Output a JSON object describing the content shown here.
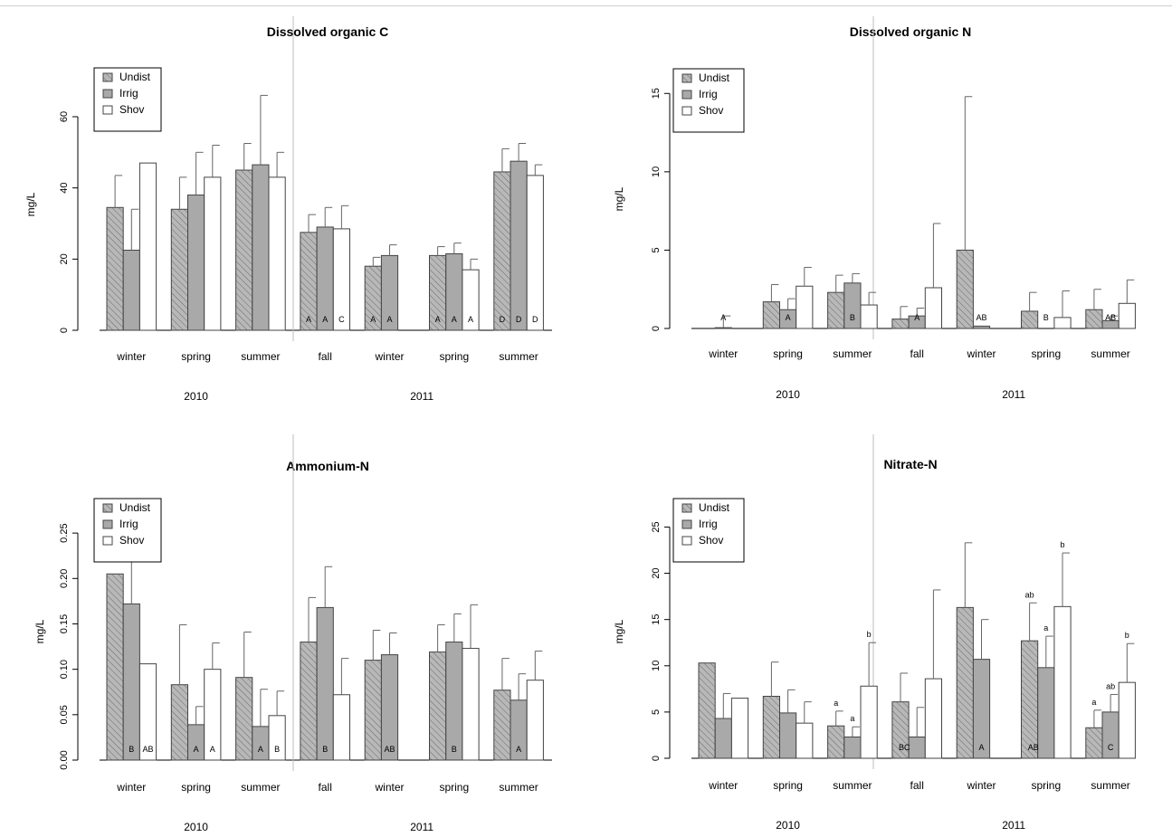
{
  "legend_keys": [
    "Undist",
    "Irrig",
    "Shov"
  ],
  "colors": {
    "undist": "#b8b8b8",
    "irrig": "#a9a9a9",
    "shov": "#ffffff",
    "hatch": "#6a6a6a"
  },
  "chart_data": [
    {
      "type": "bar",
      "title": "Dissolved organic C",
      "ylabel": "mg/L",
      "ylim": [
        0,
        75
      ],
      "yticks": [
        0,
        20,
        40,
        60
      ],
      "ytick_labels": [
        "0",
        "20",
        "40",
        "60"
      ],
      "categories": [
        "winter",
        "spring",
        "summer",
        "fall",
        "winter",
        "spring",
        "summer"
      ],
      "years": [
        {
          "label": "2010",
          "groups": [
            0,
            2
          ]
        },
        {
          "label": "2011",
          "groups": [
            3,
            6
          ]
        }
      ],
      "year_divider_after_group": 2,
      "legend_position": "top-left",
      "series": [
        {
          "name": "Undist",
          "values": [
            34.5,
            34,
            45,
            27.5,
            18,
            21,
            44.5
          ],
          "errors": [
            43.5,
            43,
            52.5,
            32.5,
            20.5,
            23.5,
            51
          ],
          "letters": [
            "",
            "",
            "",
            "A",
            "A",
            "A",
            "D"
          ]
        },
        {
          "name": "Irrig",
          "values": [
            22.5,
            38,
            46.5,
            29,
            21,
            21.5,
            47.5
          ],
          "errors": [
            34,
            50,
            66,
            34.5,
            24,
            24.5,
            52.5
          ],
          "letters": [
            "",
            "",
            "",
            "A",
            "A",
            "A",
            "D"
          ]
        },
        {
          "name": "Shov",
          "values": [
            47,
            43,
            43,
            28.5,
            null,
            17,
            43.5
          ],
          "errors": [
            null,
            52,
            50,
            35,
            null,
            20,
            46.5
          ],
          "letters": [
            "",
            "",
            "",
            "C",
            "",
            "A",
            "D"
          ]
        }
      ]
    },
    {
      "type": "bar",
      "title": "Dissolved organic N",
      "ylabel": "mg/L",
      "ylim": [
        0,
        17.5
      ],
      "yticks": [
        0,
        5,
        10,
        15
      ],
      "ytick_labels": [
        "0",
        "5",
        "10",
        "15"
      ],
      "categories": [
        "winter",
        "spring",
        "summer",
        "fall",
        "winter",
        "spring",
        "summer"
      ],
      "years": [
        {
          "label": "2010",
          "groups": [
            0,
            2
          ]
        },
        {
          "label": "2011",
          "groups": [
            3,
            6
          ]
        }
      ],
      "year_divider_after_group": 2,
      "legend_position": "top-left",
      "series": [
        {
          "name": "Undist",
          "values": [
            0,
            1.7,
            2.3,
            0.6,
            5,
            1.1,
            1.2
          ],
          "errors": [
            null,
            2.8,
            3.4,
            1.4,
            14.8,
            2.3,
            2.5
          ],
          "letters": [
            "",
            "",
            "",
            "",
            "",
            "",
            ""
          ]
        },
        {
          "name": "Irrig",
          "values": [
            0.05,
            1.2,
            2.9,
            0.8,
            0.15,
            0,
            0.5
          ],
          "errors": [
            0.8,
            1.9,
            3.5,
            1.3,
            null,
            null,
            0.8
          ],
          "letters": [
            "A",
            "A",
            "B",
            "A",
            "AB",
            "B",
            "AB"
          ]
        },
        {
          "name": "Shov",
          "values": [
            null,
            2.7,
            1.5,
            2.6,
            null,
            0.7,
            1.6
          ],
          "errors": [
            null,
            3.9,
            2.3,
            6.7,
            null,
            2.4,
            3.1
          ],
          "letters": [
            "",
            "",
            "",
            "",
            "",
            "",
            ""
          ]
        }
      ]
    },
    {
      "type": "bar",
      "title": "Ammonium-N",
      "ylabel": "mg/L",
      "ylim": [
        0,
        0.285
      ],
      "yticks": [
        0,
        0.05,
        0.1,
        0.15,
        0.2,
        0.25
      ],
      "ytick_labels": [
        "0.00",
        "0.05",
        "0.10",
        "0.15",
        "0.20",
        "0.25"
      ],
      "categories": [
        "winter",
        "spring",
        "summer",
        "fall",
        "winter",
        "spring",
        "summer"
      ],
      "years": [
        {
          "label": "2010",
          "groups": [
            0,
            2
          ]
        },
        {
          "label": "2011",
          "groups": [
            3,
            6
          ]
        }
      ],
      "year_divider_after_group": 2,
      "legend_position": "top-left",
      "series": [
        {
          "name": "Undist",
          "values": [
            0.205,
            0.083,
            0.091,
            0.13,
            0.11,
            0.119,
            0.077
          ],
          "errors": [
            null,
            0.149,
            0.141,
            0.179,
            0.143,
            0.149,
            0.112
          ],
          "letters": [
            "",
            "",
            "",
            "",
            "",
            "",
            ""
          ]
        },
        {
          "name": "Irrig",
          "values": [
            0.172,
            0.039,
            0.037,
            0.168,
            0.116,
            0.13,
            0.066
          ],
          "errors": [
            0.23,
            0.059,
            0.078,
            0.213,
            0.14,
            0.161,
            0.095
          ],
          "letters": [
            "B",
            "A",
            "A",
            "B",
            "AB",
            "B",
            "A"
          ]
        },
        {
          "name": "Shov",
          "values": [
            0.106,
            0.1,
            0.049,
            0.072,
            null,
            0.123,
            0.088
          ],
          "errors": [
            null,
            0.129,
            0.076,
            0.112,
            null,
            0.171,
            0.12
          ],
          "letters": [
            "AB",
            "A",
            "B",
            "",
            "",
            "",
            ""
          ]
        }
      ]
    },
    {
      "type": "bar",
      "title": "Nitrate-N",
      "ylabel": "mg/L",
      "ylim": [
        0,
        27
      ],
      "yticks": [
        0,
        5,
        10,
        15,
        20,
        25
      ],
      "ytick_labels": [
        "0",
        "5",
        "10",
        "15",
        "20",
        "25"
      ],
      "categories": [
        "winter",
        "spring",
        "summer",
        "fall",
        "winter",
        "spring",
        "summer"
      ],
      "years": [
        {
          "label": "2010",
          "groups": [
            0,
            2
          ]
        },
        {
          "label": "2011",
          "groups": [
            3,
            6
          ]
        }
      ],
      "year_divider_after_group": 2,
      "legend_position": "top-left",
      "series": [
        {
          "name": "Undist",
          "values": [
            10.3,
            6.7,
            3.5,
            6.1,
            16.3,
            12.7,
            3.3
          ],
          "errors": [
            null,
            10.4,
            5.1,
            9.2,
            23.3,
            16.8,
            5.2
          ],
          "letters": [
            "",
            "",
            "a",
            "",
            "",
            "ab",
            "a"
          ],
          "base_letters": [
            "",
            "",
            "",
            "",
            "",
            "",
            ""
          ]
        },
        {
          "name": "Irrig",
          "values": [
            4.3,
            4.9,
            2.3,
            2.3,
            10.7,
            9.8,
            5
          ],
          "errors": [
            7,
            7.4,
            3.4,
            5.5,
            15,
            13.2,
            6.9
          ],
          "letters": [
            "",
            "",
            "a",
            "",
            "",
            "a",
            "ab"
          ],
          "base_letters": [
            "",
            "",
            "",
            "BC",
            "A",
            "AB",
            "C"
          ]
        },
        {
          "name": "Shov",
          "values": [
            6.5,
            3.8,
            7.8,
            8.6,
            null,
            16.4,
            8.2
          ],
          "errors": [
            null,
            6.1,
            12.5,
            18.2,
            null,
            22.2,
            12.4
          ],
          "letters": [
            "",
            "",
            "b",
            "",
            "",
            "b",
            "b"
          ],
          "base_letters": [
            "",
            "",
            "",
            "",
            "",
            "",
            ""
          ]
        }
      ]
    }
  ]
}
